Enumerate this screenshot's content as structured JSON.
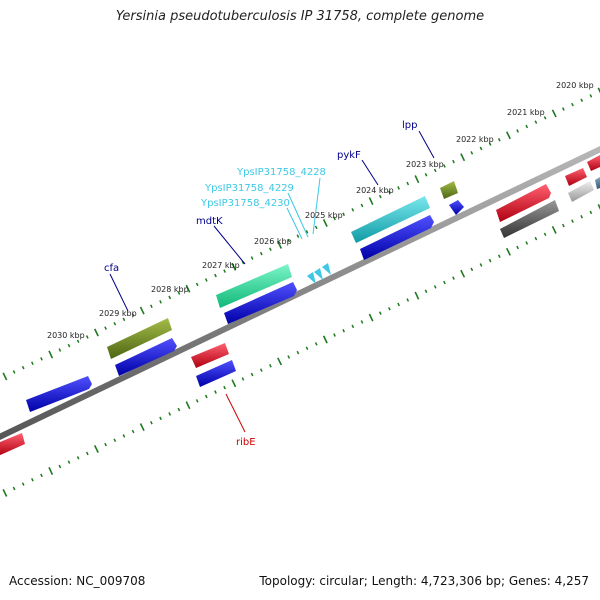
{
  "title": "Yersinia pseudotuberculosis IP 31758, complete genome",
  "footer": {
    "accession": "Accession: NC_009708",
    "summary": "Topology: circular; Length: 4,723,306 bp; Genes: 4,257"
  },
  "scale_labels": [
    "2020 kbp",
    "2021 kbp",
    "2022 kbp",
    "2023 kbp",
    "2024 kbp",
    "2025 kbp",
    "2026 kbp",
    "2027 kbp",
    "2028 kbp",
    "2029 kbp",
    "2030 kbp"
  ],
  "gene_labels": [
    {
      "text": "lpp",
      "color": "#00008b"
    },
    {
      "text": "pykF",
      "color": "#00008b"
    },
    {
      "text": "YpsIP31758_4228",
      "color": "#3cc8e6"
    },
    {
      "text": "YpsIP31758_4229",
      "color": "#3cc8e6"
    },
    {
      "text": "YpsIP31758_4230",
      "color": "#3cc8e6"
    },
    {
      "text": "mdtK",
      "color": "#00008b"
    },
    {
      "text": "cfa",
      "color": "#00008b"
    },
    {
      "text": "ribE",
      "color": "#cc0000"
    }
  ],
  "colors": {
    "backbone": "#808080",
    "ticks": "#1f7a1f",
    "olive": "#6b8e23",
    "cyan": "#22c4cc",
    "aqua": "#20e0a0",
    "blue": "#1010dd",
    "red": "#e01020",
    "darkgray": "#555555",
    "lightgray": "#bbbbbb",
    "steel": "#4a7ab5"
  }
}
